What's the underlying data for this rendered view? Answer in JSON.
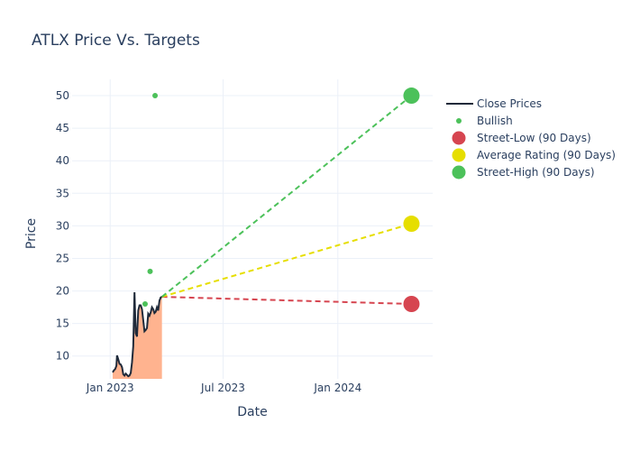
{
  "chart_data": {
    "type": "line",
    "title": "ATLX Price Vs. Targets",
    "xlabel": "Date",
    "ylabel": "Price",
    "xlim": [
      "2022-11-01",
      "2024-06-01"
    ],
    "ylim": [
      6.5,
      52.5
    ],
    "x_ticks": [
      {
        "date": "2023-01-01",
        "label": "Jan 2023"
      },
      {
        "date": "2023-07-01",
        "label": "Jul 2023"
      },
      {
        "date": "2024-01-01",
        "label": "Jan 2024"
      }
    ],
    "y_ticks": [
      10,
      15,
      20,
      25,
      30,
      35,
      40,
      45,
      50
    ],
    "grid": true,
    "legend_position": "right",
    "series": [
      {
        "name": "Close Prices",
        "kind": "line-area",
        "color": "#1f2a3a",
        "fill_color": "#ffb38f",
        "x": [
          "2023-01-05",
          "2023-01-07",
          "2023-01-09",
          "2023-01-11",
          "2023-01-12",
          "2023-01-13",
          "2023-01-14",
          "2023-01-16",
          "2023-01-18",
          "2023-01-20",
          "2023-01-22",
          "2023-01-24",
          "2023-01-26",
          "2023-01-28",
          "2023-01-30",
          "2023-02-01",
          "2023-02-03",
          "2023-02-05",
          "2023-02-07",
          "2023-02-09",
          "2023-02-11",
          "2023-02-13",
          "2023-02-15",
          "2023-02-17",
          "2023-02-19",
          "2023-02-21",
          "2023-02-23",
          "2023-02-25",
          "2023-02-27",
          "2023-03-01",
          "2023-03-03",
          "2023-03-05",
          "2023-03-07",
          "2023-03-09",
          "2023-03-11",
          "2023-03-13",
          "2023-03-15",
          "2023-03-17",
          "2023-03-19",
          "2023-03-21",
          "2023-03-23",
          "2023-03-25"
        ],
        "y": [
          7.5,
          7.8,
          8.0,
          8.5,
          10.1,
          9.8,
          9.5,
          8.8,
          8.7,
          8.3,
          7.2,
          7.0,
          7.3,
          7.1,
          6.9,
          7.0,
          7.4,
          9.0,
          11.5,
          19.8,
          13.5,
          13.0,
          17.0,
          17.8,
          17.8,
          17.2,
          15.5,
          13.8,
          14.0,
          14.3,
          16.5,
          16.2,
          16.7,
          17.5,
          17.2,
          16.6,
          16.8,
          17.5,
          17.0,
          18.5,
          19.0,
          19.1
        ]
      },
      {
        "name": "Bullish",
        "kind": "markers",
        "color": "#4cc15a",
        "x": [
          "2023-03-14",
          "2023-03-06",
          "2023-02-26"
        ],
        "y": [
          50,
          23,
          18
        ]
      },
      {
        "name": "Street-Low (90 Days)",
        "kind": "target",
        "color": "#d64550",
        "x": [
          "2023-03-25",
          "2024-04-28"
        ],
        "y": [
          19.1,
          18
        ]
      },
      {
        "name": "Average Rating (90 Days)",
        "kind": "target",
        "color": "#e6de00",
        "x": [
          "2023-03-25",
          "2024-04-28"
        ],
        "y": [
          19.1,
          30.33
        ]
      },
      {
        "name": "Street-High (90 Days)",
        "kind": "target",
        "color": "#4cc15a",
        "x": [
          "2023-03-25",
          "2024-04-28"
        ],
        "y": [
          19.1,
          50
        ]
      }
    ]
  }
}
